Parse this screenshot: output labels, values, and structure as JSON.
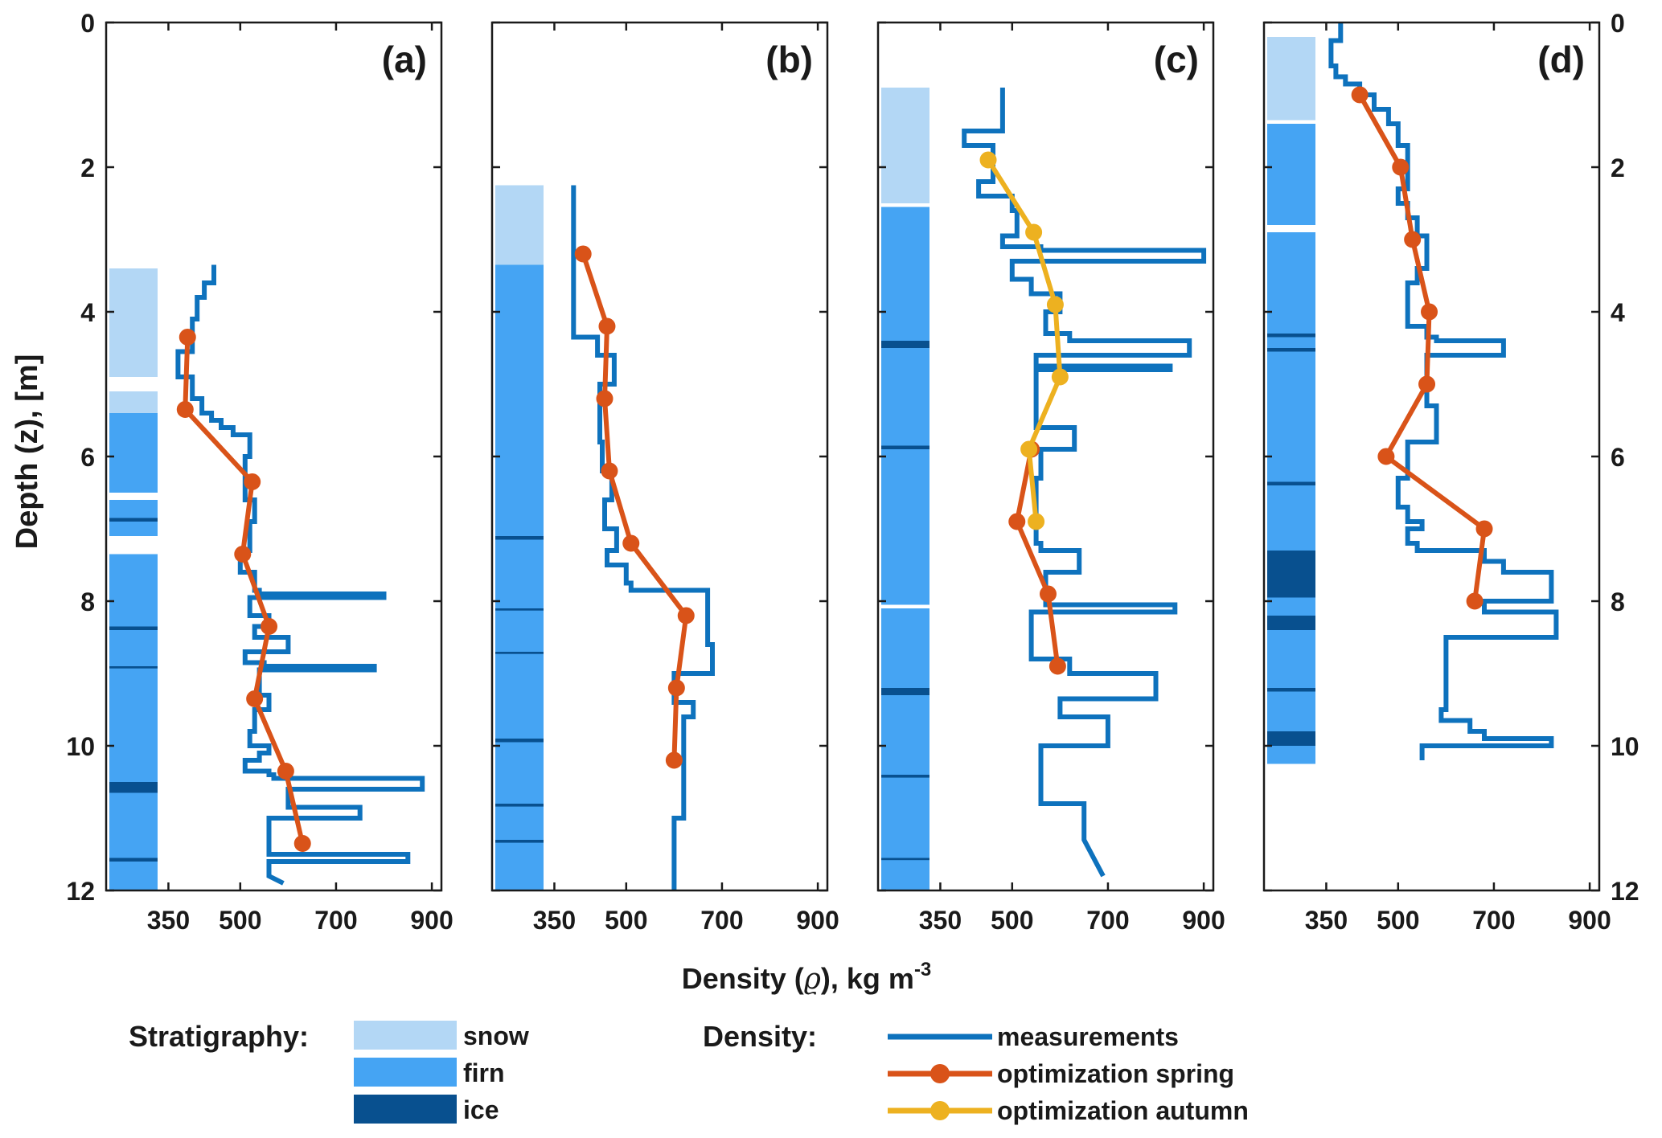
{
  "chart_data": {
    "type": "line",
    "xlabel_prefix": "Density (",
    "xlabel_symbol": "ϱ",
    "xlabel_suffix": "), kg m",
    "xlabel_sup": "-3",
    "ylabel": "Depth (z), [m]",
    "xlim": [
      220,
      920
    ],
    "ylim": [
      0,
      12
    ],
    "xticks": [
      350,
      500,
      700,
      900
    ],
    "xtick_labels": [
      "350",
      "500",
      "700",
      "900"
    ],
    "yticks": [
      0,
      2,
      4,
      6,
      8,
      10,
      12
    ],
    "ytick_labels": [
      "0",
      "2",
      "4",
      "6",
      "8",
      "10",
      "12"
    ],
    "colors": {
      "measurements": "#0E72BD",
      "spring": "#D95319",
      "autumn": "#EDB120",
      "snow": "#B3D7F5",
      "firn": "#45A4F3",
      "ice": "#08508F"
    },
    "panels": [
      {
        "label": "(a)",
        "stratigraphy": [
          {
            "type": "snow",
            "top": 3.4,
            "bottom": 4.9
          },
          {
            "type": "snow",
            "top": 5.1,
            "bottom": 5.4
          },
          {
            "type": "firn",
            "top": 5.4,
            "bottom": 6.5
          },
          {
            "type": "firn",
            "top": 6.6,
            "bottom": 7.1
          },
          {
            "type": "firn",
            "top": 7.35,
            "bottom": 12
          },
          {
            "type": "ice",
            "top": 6.85,
            "bottom": 6.9
          },
          {
            "type": "ice",
            "top": 8.35,
            "bottom": 8.4
          },
          {
            "type": "ice",
            "top": 8.9,
            "bottom": 8.93
          },
          {
            "type": "ice",
            "top": 10.5,
            "bottom": 10.65
          },
          {
            "type": "ice",
            "top": 11.55,
            "bottom": 11.6
          }
        ],
        "measurements": {
          "x": [
            445,
            445,
            425,
            425,
            410,
            410,
            400,
            400,
            400,
            400,
            370,
            370,
            400,
            400,
            420,
            420,
            440,
            440,
            460,
            460,
            485,
            485,
            520,
            520,
            510,
            510,
            530,
            530,
            520,
            520,
            500,
            500,
            530,
            530,
            540,
            540,
            800,
            800,
            520,
            520,
            560,
            560,
            530,
            530,
            600,
            600,
            510,
            510,
            550,
            550,
            780,
            780,
            540,
            540,
            560,
            560,
            530,
            530,
            520,
            520,
            560,
            560,
            540,
            540,
            510,
            510,
            560,
            560,
            570,
            570,
            880,
            880,
            600,
            600,
            750,
            750,
            560,
            560,
            850,
            850,
            560,
            560,
            590
          ],
          "y": [
            3.35,
            3.6,
            3.6,
            3.8,
            3.8,
            4.1,
            4.1,
            4.5,
            4.5,
            4.55,
            4.55,
            4.9,
            4.9,
            5.2,
            5.2,
            5.4,
            5.4,
            5.5,
            5.5,
            5.6,
            5.6,
            5.7,
            5.7,
            6.0,
            6.0,
            6.6,
            6.6,
            6.9,
            6.9,
            7.3,
            7.3,
            7.6,
            7.6,
            7.85,
            7.85,
            7.9,
            7.9,
            7.95,
            7.95,
            8.2,
            8.2,
            8.35,
            8.35,
            8.5,
            8.5,
            8.7,
            8.7,
            8.85,
            8.85,
            8.9,
            8.9,
            8.95,
            8.95,
            9.3,
            9.3,
            9.5,
            9.5,
            9.8,
            9.8,
            10.0,
            10.0,
            10.1,
            10.1,
            10.2,
            10.2,
            10.35,
            10.35,
            10.4,
            10.4,
            10.45,
            10.45,
            10.6,
            10.6,
            10.85,
            10.85,
            11.0,
            11.0,
            11.5,
            11.5,
            11.6,
            11.6,
            11.8,
            11.9
          ]
        },
        "spring": {
          "x": [
            390,
            385,
            525,
            505,
            560,
            530,
            595,
            630
          ],
          "y": [
            4.35,
            5.35,
            6.35,
            7.35,
            8.35,
            9.35,
            10.35,
            11.35
          ]
        },
        "autumn": null
      },
      {
        "label": "(b)",
        "stratigraphy": [
          {
            "type": "snow",
            "top": 2.25,
            "bottom": 3.35
          },
          {
            "type": "firn",
            "top": 3.35,
            "bottom": 12
          },
          {
            "type": "ice",
            "top": 7.1,
            "bottom": 7.15
          },
          {
            "type": "ice",
            "top": 8.1,
            "bottom": 8.13
          },
          {
            "type": "ice",
            "top": 8.7,
            "bottom": 8.73
          },
          {
            "type": "ice",
            "top": 9.9,
            "bottom": 9.95
          },
          {
            "type": "ice",
            "top": 10.8,
            "bottom": 10.84
          },
          {
            "type": "ice",
            "top": 11.3,
            "bottom": 11.34
          }
        ],
        "measurements": {
          "x": [
            390,
            390,
            440,
            440,
            475,
            475,
            445,
            445,
            450,
            450,
            470,
            470,
            455,
            455,
            480,
            480,
            460,
            460,
            500,
            500,
            510,
            510,
            670,
            670,
            680,
            680,
            600,
            600,
            640,
            640,
            620,
            620,
            600,
            600
          ],
          "y": [
            2.25,
            4.35,
            4.35,
            4.6,
            4.6,
            5.0,
            5.0,
            5.8,
            5.8,
            6.2,
            6.2,
            6.6,
            6.6,
            7.0,
            7.0,
            7.3,
            7.3,
            7.5,
            7.5,
            7.75,
            7.75,
            7.85,
            7.85,
            8.6,
            8.6,
            9.0,
            9.0,
            9.4,
            9.4,
            9.6,
            9.6,
            11.0,
            11.0,
            12.0
          ]
        },
        "spring": {
          "x": [
            410,
            460,
            455,
            465,
            510,
            625,
            605,
            600
          ],
          "y": [
            3.2,
            4.2,
            5.2,
            6.2,
            7.2,
            8.2,
            9.2,
            10.2
          ]
        },
        "autumn": null
      },
      {
        "label": "(c)",
        "stratigraphy": [
          {
            "type": "snow",
            "top": 0.9,
            "bottom": 2.5
          },
          {
            "type": "firn",
            "top": 2.55,
            "bottom": 8.05
          },
          {
            "type": "firn",
            "top": 8.1,
            "bottom": 12
          },
          {
            "type": "ice",
            "top": 4.4,
            "bottom": 4.5
          },
          {
            "type": "ice",
            "top": 5.85,
            "bottom": 5.9
          },
          {
            "type": "ice",
            "top": 9.2,
            "bottom": 9.3
          },
          {
            "type": "ice",
            "top": 10.4,
            "bottom": 10.44
          },
          {
            "type": "ice",
            "top": 11.55,
            "bottom": 11.58
          }
        ],
        "measurements": {
          "x": [
            480,
            480,
            400,
            400,
            460,
            460,
            430,
            430,
            500,
            500,
            510,
            510,
            480,
            480,
            560,
            560,
            900,
            900,
            500,
            500,
            540,
            540,
            600,
            600,
            570,
            570,
            620,
            620,
            870,
            870,
            550,
            550,
            830,
            830,
            550,
            550,
            630,
            630,
            560,
            560,
            550,
            550,
            560,
            560,
            640,
            640,
            570,
            570,
            840,
            840,
            540,
            540,
            620,
            620,
            800,
            800,
            600,
            600,
            700,
            700,
            560,
            560,
            650,
            650,
            690
          ],
          "y": [
            0.9,
            1.5,
            1.5,
            1.7,
            1.7,
            2.2,
            2.2,
            2.4,
            2.4,
            2.6,
            2.6,
            2.95,
            2.95,
            3.1,
            3.1,
            3.15,
            3.15,
            3.3,
            3.3,
            3.55,
            3.55,
            3.75,
            3.75,
            4.0,
            4.0,
            4.3,
            4.3,
            4.4,
            4.4,
            4.6,
            4.6,
            4.75,
            4.75,
            4.8,
            4.8,
            5.6,
            5.6,
            5.9,
            5.9,
            6.3,
            6.3,
            7.2,
            7.2,
            7.3,
            7.3,
            7.6,
            7.6,
            8.05,
            8.05,
            8.15,
            8.15,
            8.8,
            8.8,
            9.0,
            9.0,
            9.35,
            9.35,
            9.6,
            9.6,
            10.0,
            10.0,
            10.8,
            10.8,
            11.3,
            11.8
          ]
        },
        "spring": {
          "x": [
            540,
            510,
            575,
            595
          ],
          "y": [
            5.9,
            6.9,
            7.9,
            8.9
          ]
        },
        "autumn": {
          "x": [
            450,
            545,
            590,
            600,
            535,
            550
          ],
          "y": [
            1.9,
            2.9,
            3.9,
            4.9,
            5.9,
            6.9
          ]
        }
      },
      {
        "label": "(d)",
        "stratigraphy": [
          {
            "type": "snow",
            "top": 0.2,
            "bottom": 1.35
          },
          {
            "type": "firn",
            "top": 1.4,
            "bottom": 2.8
          },
          {
            "type": "firn",
            "top": 2.9,
            "bottom": 10.25
          },
          {
            "type": "ice",
            "top": 4.3,
            "bottom": 4.35
          },
          {
            "type": "ice",
            "top": 4.5,
            "bottom": 4.55
          },
          {
            "type": "ice",
            "top": 6.35,
            "bottom": 6.4
          },
          {
            "type": "ice",
            "top": 7.3,
            "bottom": 7.95
          },
          {
            "type": "ice",
            "top": 8.2,
            "bottom": 8.4
          },
          {
            "type": "ice",
            "top": 9.2,
            "bottom": 9.25
          },
          {
            "type": "ice",
            "top": 9.8,
            "bottom": 10.0
          }
        ],
        "measurements": {
          "x": [
            380,
            380,
            360,
            360,
            370,
            370,
            390,
            390,
            420,
            420,
            450,
            450,
            480,
            480,
            500,
            500,
            520,
            520,
            500,
            500,
            520,
            520,
            540,
            540,
            560,
            560,
            540,
            540,
            520,
            520,
            560,
            560,
            580,
            580,
            720,
            720,
            560,
            560,
            580,
            580,
            520,
            520,
            500,
            500,
            520,
            520,
            550,
            550,
            520,
            520,
            540,
            540,
            680,
            680,
            720,
            720,
            820,
            820,
            680,
            680,
            830,
            830,
            600,
            600,
            590,
            590,
            650,
            650,
            680,
            680,
            820,
            820,
            550,
            550
          ],
          "y": [
            0.0,
            0.25,
            0.25,
            0.6,
            0.6,
            0.75,
            0.75,
            0.85,
            0.85,
            1.0,
            1.0,
            1.2,
            1.2,
            1.4,
            1.4,
            1.7,
            1.7,
            2.3,
            2.3,
            2.5,
            2.5,
            2.7,
            2.7,
            2.95,
            2.95,
            3.4,
            3.4,
            3.6,
            3.6,
            4.2,
            4.2,
            4.35,
            4.35,
            4.4,
            4.4,
            4.6,
            4.6,
            5.3,
            5.3,
            5.8,
            5.8,
            6.3,
            6.3,
            6.7,
            6.7,
            6.9,
            6.9,
            7.0,
            7.0,
            7.2,
            7.2,
            7.3,
            7.3,
            7.45,
            7.45,
            7.6,
            7.6,
            8.0,
            8.0,
            8.15,
            8.15,
            8.5,
            8.5,
            9.5,
            9.5,
            9.65,
            9.65,
            9.8,
            9.8,
            9.9,
            9.9,
            10.0,
            10.0,
            10.2
          ]
        },
        "spring": {
          "x": [
            420,
            505,
            530,
            565,
            560,
            475,
            680,
            660
          ],
          "y": [
            1.0,
            2.0,
            3.0,
            4.0,
            5.0,
            6.0,
            7.0,
            8.0
          ]
        },
        "autumn": null
      }
    ],
    "legend": {
      "stratigraphy_title": "Stratigraphy:",
      "stratigraphy_items": [
        {
          "type": "snow",
          "label": "snow"
        },
        {
          "type": "firn",
          "label": "firn"
        },
        {
          "type": "ice",
          "label": "ice"
        }
      ],
      "density_title": "Density:",
      "density_items": [
        {
          "series": "measurements",
          "label": "measurements"
        },
        {
          "series": "spring",
          "label": "optimization spring"
        },
        {
          "series": "autumn",
          "label": "optimization autumn"
        }
      ]
    }
  }
}
